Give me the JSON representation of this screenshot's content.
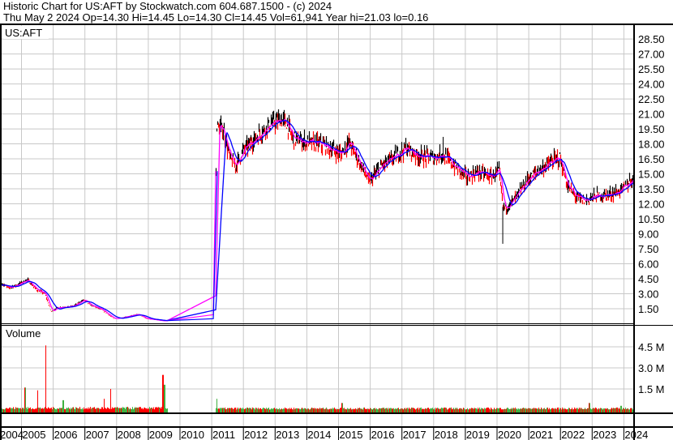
{
  "header": {
    "title": "Historic Chart for US:AFT by Stockwatch.com 604.687.1500 - (c) 2024",
    "quote": "Thu May  2 2024   Op=14.30   Hi=14.45   Lo=14.30   Cl=14.45   Vol=61,941   Year hi=21.03   lo=0.16"
  },
  "colors": {
    "up_bar": "#000000",
    "down_bar": "#ff0000",
    "ma_short": "#ff00ff",
    "ma_long": "#0000ff",
    "vol_up": "#40b040",
    "vol_down": "#ff0000",
    "grid": "#c8c8c8"
  },
  "chart_data": [
    {
      "type": "line",
      "panel": "price",
      "label": "US:AFT",
      "x_unit": "year",
      "xlim": [
        2004.37,
        2024.34
      ],
      "ylim": [
        0,
        29.3
      ],
      "grid": true,
      "x_tick_labels": [
        "2004",
        "2005",
        "2006",
        "2007",
        "2008",
        "2009",
        "2010",
        "2011",
        "2012",
        "2013",
        "2014",
        "2015",
        "2016",
        "2017",
        "2018",
        "2019",
        "2020",
        "2021",
        "2022",
        "2023",
        "2024"
      ],
      "y_tick_labels": [
        "28.50",
        "27.00",
        "25.50",
        "24.00",
        "22.50",
        "21.00",
        "19.50",
        "18.00",
        "16.50",
        "15.00",
        "13.50",
        "12.00",
        "10.50",
        "9.00",
        "7.50",
        "6.00",
        "4.50",
        "3.00",
        "1.50"
      ],
      "close": [
        [
          2004.37,
          4.0
        ],
        [
          2004.58,
          3.6
        ],
        [
          2004.83,
          3.85
        ],
        [
          2005.17,
          4.4
        ],
        [
          2005.47,
          3.4
        ],
        [
          2005.73,
          3.0
        ],
        [
          2005.93,
          1.2
        ],
        [
          2006.11,
          1.6
        ],
        [
          2006.62,
          1.75
        ],
        [
          2006.96,
          2.4
        ],
        [
          2007.14,
          1.9
        ],
        [
          2007.52,
          1.4
        ],
        [
          2007.9,
          0.5
        ],
        [
          2008.16,
          0.6
        ],
        [
          2008.67,
          0.95
        ],
        [
          2008.93,
          0.5
        ],
        [
          2009.44,
          0.3
        ],
        [
          2009.57,
          0.3
        ],
        [
          2011.05,
          0.9
        ],
        [
          2011.15,
          19.8
        ],
        [
          2011.36,
          19.4
        ],
        [
          2011.56,
          16.6
        ],
        [
          2011.74,
          15.8
        ],
        [
          2012.0,
          17.4
        ],
        [
          2012.38,
          18.6
        ],
        [
          2012.77,
          19.8
        ],
        [
          2013.15,
          20.4
        ],
        [
          2013.33,
          20.2
        ],
        [
          2013.54,
          18.6
        ],
        [
          2013.91,
          18.2
        ],
        [
          2014.42,
          18.0
        ],
        [
          2014.81,
          17.4
        ],
        [
          2015.07,
          17.0
        ],
        [
          2015.32,
          18.2
        ],
        [
          2015.58,
          16.6
        ],
        [
          2015.96,
          14.2
        ],
        [
          2016.35,
          15.8
        ],
        [
          2016.73,
          16.6
        ],
        [
          2017.11,
          17.6
        ],
        [
          2017.49,
          16.8
        ],
        [
          2018.01,
          16.6
        ],
        [
          2018.26,
          17.0
        ],
        [
          2018.64,
          15.8
        ],
        [
          2019.03,
          14.7
        ],
        [
          2019.41,
          15.2
        ],
        [
          2019.8,
          14.7
        ],
        [
          2020.05,
          15.3
        ],
        [
          2020.18,
          11.7
        ],
        [
          2020.3,
          11.7
        ],
        [
          2020.56,
          12.5
        ],
        [
          2020.94,
          14.4
        ],
        [
          2021.33,
          15.4
        ],
        [
          2021.71,
          16.2
        ],
        [
          2021.97,
          16.6
        ],
        [
          2022.22,
          13.7
        ],
        [
          2022.48,
          12.7
        ],
        [
          2022.74,
          12.3
        ],
        [
          2023.12,
          12.8
        ],
        [
          2023.51,
          12.9
        ],
        [
          2023.89,
          13.3
        ],
        [
          2024.23,
          14.4
        ],
        [
          2024.34,
          14.45
        ]
      ],
      "spikes": [
        [
          2020.18,
          8.0
        ],
        [
          2018.3,
          18.7
        ],
        [
          2013.2,
          21.03
        ]
      ]
    },
    {
      "type": "bar",
      "panel": "volume",
      "label": "Volume",
      "x_unit": "year",
      "ylim": [
        0,
        6.0
      ],
      "y_unit": "M",
      "y_tick_labels": [
        "4.5 M",
        "3.0 M",
        "1.5 M"
      ],
      "typical_volume_m": 0.15,
      "spikes_m": [
        [
          2005.1,
          1.6
        ],
        [
          2005.5,
          1.4
        ],
        [
          2005.75,
          4.6
        ],
        [
          2006.3,
          0.7
        ],
        [
          2007.8,
          1.5
        ],
        [
          2007.6,
          0.8
        ],
        [
          2009.45,
          2.5
        ],
        [
          2009.5,
          1.8
        ],
        [
          2011.15,
          0.8
        ],
        [
          2015.1,
          0.5
        ],
        [
          2022.9,
          0.5
        ],
        [
          2023.9,
          0.3
        ]
      ]
    }
  ]
}
